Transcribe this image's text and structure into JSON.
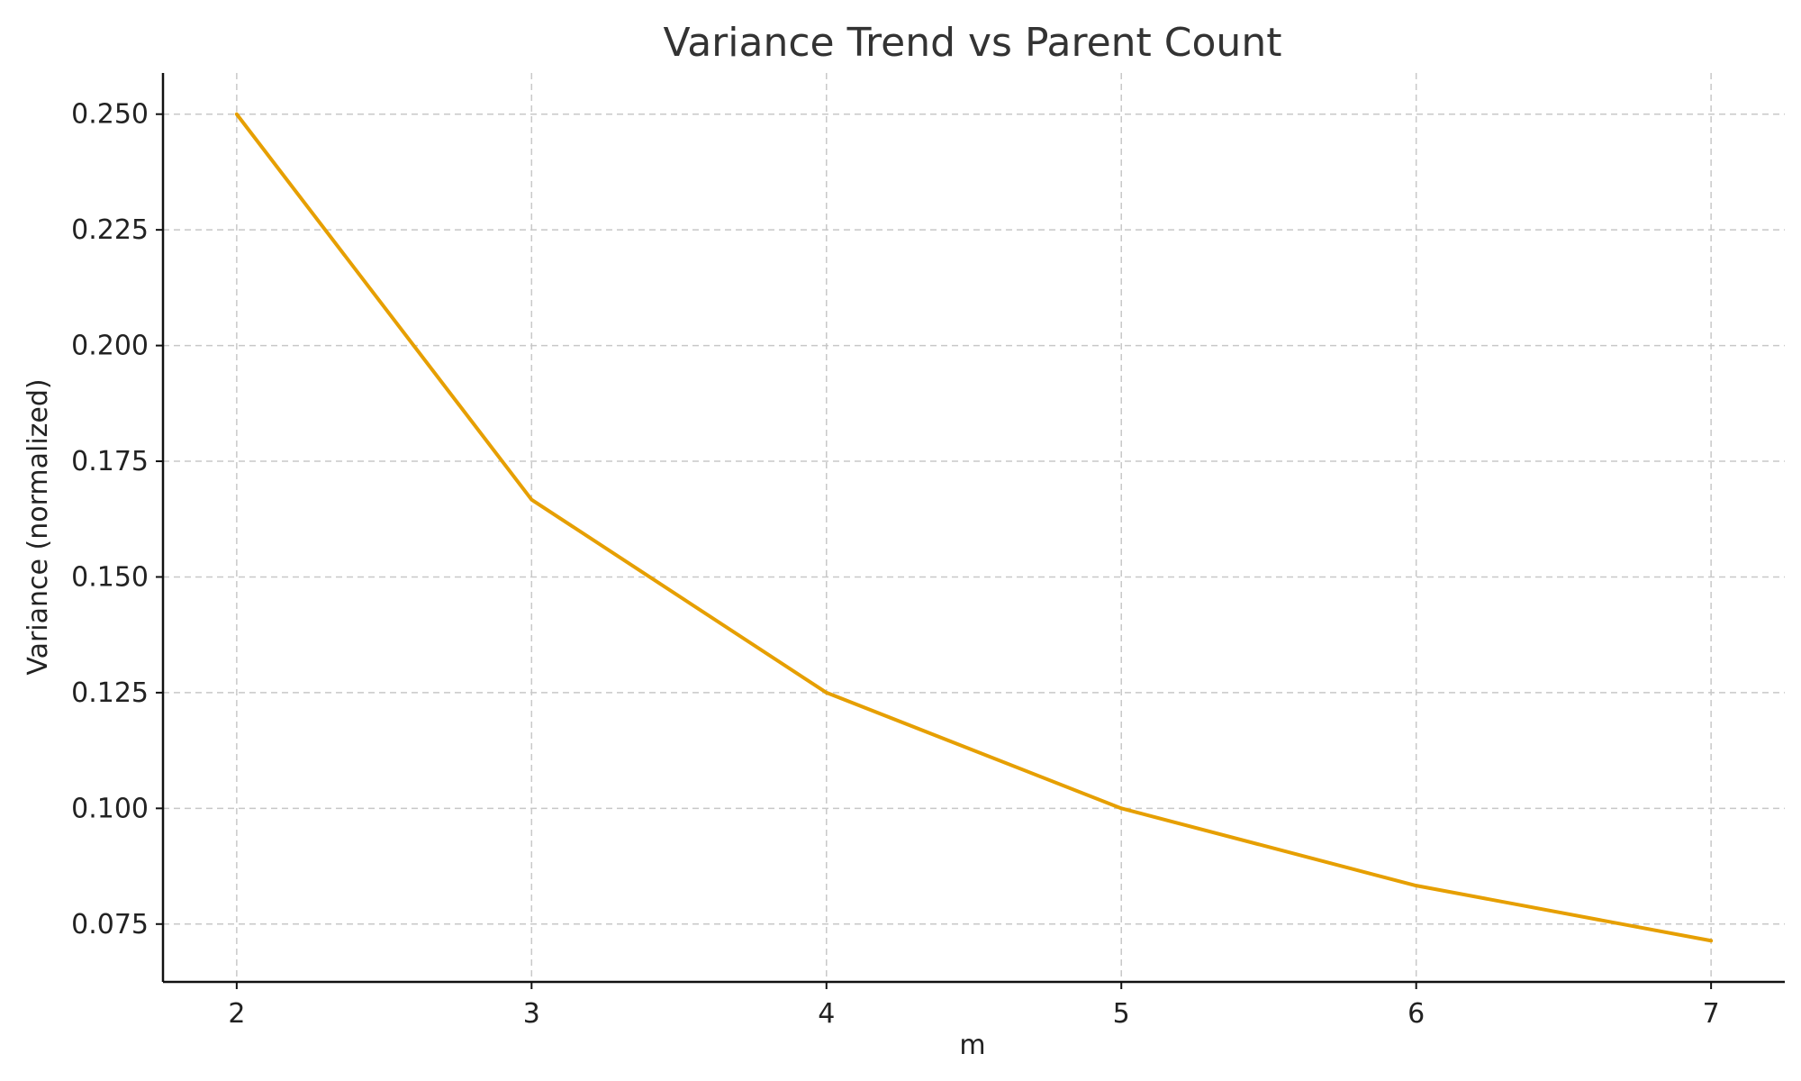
{
  "chart_data": {
    "type": "line",
    "title": "Variance Trend vs Parent Count",
    "xlabel": "m",
    "ylabel": "Variance (normalized)",
    "x": [
      2,
      3,
      4,
      5,
      6,
      7
    ],
    "series": [
      {
        "values": [
          0.25,
          0.1667,
          0.125,
          0.1,
          0.0833,
          0.0714
        ],
        "color": "#E69F00"
      }
    ],
    "xlim": [
      1.75,
      7.25
    ],
    "ylim": [
      0.0625,
      0.2589
    ],
    "xticks": [
      2,
      3,
      4,
      5,
      6,
      7
    ],
    "xtick_labels": [
      "2",
      "3",
      "4",
      "5",
      "6",
      "7"
    ],
    "yticks": [
      0.075,
      0.1,
      0.125,
      0.15,
      0.175,
      0.2,
      0.225,
      0.25
    ],
    "ytick_labels": [
      "0.075",
      "0.100",
      "0.125",
      "0.150",
      "0.175",
      "0.200",
      "0.225",
      "0.250"
    ],
    "grid": true,
    "grid_color": "#c8c8c8",
    "axis_color": "#111111"
  }
}
